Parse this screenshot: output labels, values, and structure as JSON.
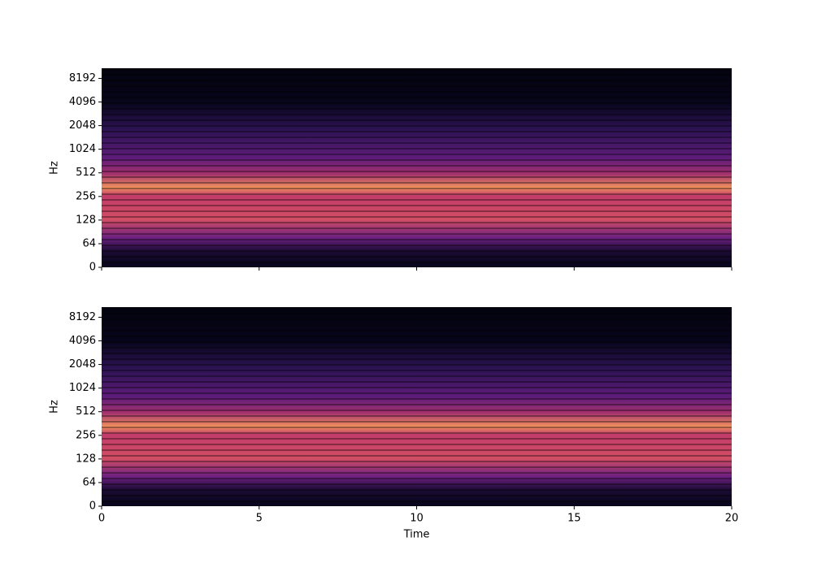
{
  "chart_data": [
    {
      "type": "spectrogram",
      "ylabel": "Hz",
      "yscale": "symlog",
      "linthresh": 64,
      "ylim": [
        0,
        11025
      ],
      "yticks": [
        0,
        64,
        128,
        256,
        512,
        1024,
        2048,
        4096,
        8192
      ],
      "xlim": [
        0,
        20
      ],
      "xticks": [
        0,
        5,
        10,
        15,
        20
      ],
      "show_xticklabels": false,
      "colormap": "magma"
    },
    {
      "type": "spectrogram",
      "ylabel": "Hz",
      "xlabel": "Time",
      "yscale": "symlog",
      "linthresh": 64,
      "ylim": [
        0,
        11025
      ],
      "yticks": [
        0,
        64,
        128,
        256,
        512,
        1024,
        2048,
        4096,
        8192
      ],
      "xlim": [
        0,
        20
      ],
      "xticks": [
        0,
        5,
        10,
        15,
        20
      ],
      "show_xticklabels": true,
      "colormap": "magma"
    }
  ]
}
